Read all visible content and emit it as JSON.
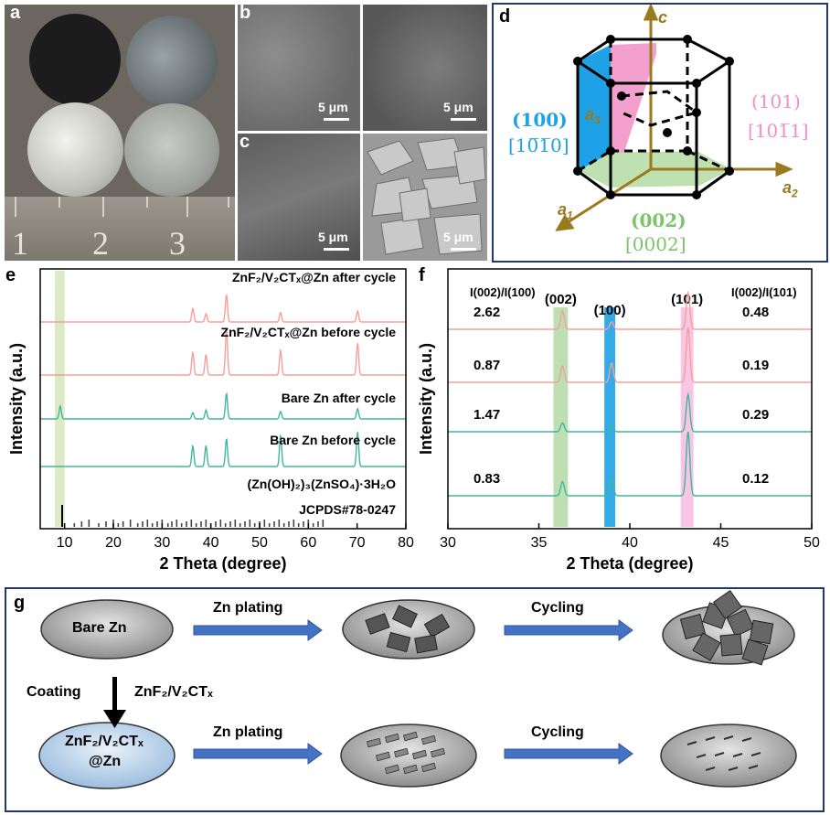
{
  "panels": {
    "a": "a",
    "b": "b",
    "c": "c",
    "d": "d",
    "e": "e",
    "f": "f",
    "g": "g"
  },
  "panel_a": {
    "ruler_numbers": [
      "1",
      "2",
      "3"
    ],
    "colors": {
      "dark_disc": "#1c1c1c",
      "grey_disc": "#6b7276",
      "silver_disc": "#c9c9c4",
      "frosted_disc": "#a7aaa5",
      "ruler": "#8a857d"
    }
  },
  "panel_bc": {
    "scale_labels": [
      "5 μm",
      "5 μm",
      "5 μm",
      "5 μm"
    ]
  },
  "panel_d": {
    "axis_c": "c",
    "axis_a1": "a",
    "axis_a1_sub": "1",
    "axis_a2": "a",
    "axis_a2_sub": "2",
    "axis_a3": "a",
    "axis_a3_sub": "3",
    "plane_100": "(100)",
    "dir_100": "[10̅1̅0]",
    "plane_101": "(101)",
    "dir_101": "[101̅1]",
    "plane_002": "(002)",
    "dir_002": "[0002]",
    "colors": {
      "c100": "#1ea1e6",
      "c101": "#f28fc7",
      "c002": "#7cc36a",
      "axis": "#9a7a1e"
    }
  },
  "chart_data": [
    {
      "panel": "e",
      "type": "line",
      "xlabel": "2 Theta (degree)",
      "ylabel": "Intensity (a.u.)",
      "xlim": [
        5,
        80
      ],
      "xticks": [
        10,
        20,
        30,
        40,
        50,
        60,
        70,
        80
      ],
      "highlight_band": [
        8,
        10
      ],
      "series": [
        {
          "name": "ZnF₂/V₂CTₓ@Zn after cycle",
          "color": "#f4a09a",
          "peaks": [
            [
              36.3,
              0.5
            ],
            [
              39.0,
              0.3
            ],
            [
              43.2,
              1.0
            ],
            [
              54.3,
              0.35
            ],
            [
              70.1,
              0.4
            ]
          ]
        },
        {
          "name": "ZnF₂/V₂CTₓ@Zn before cycle",
          "color": "#f4a09a",
          "peaks": [
            [
              36.3,
              0.5
            ],
            [
              39.0,
              0.45
            ],
            [
              43.2,
              1.0
            ],
            [
              54.3,
              0.55
            ],
            [
              70.1,
              0.7
            ]
          ]
        },
        {
          "name": "Bare Zn after cycle",
          "color": "#3fb89a",
          "peaks": [
            [
              9.1,
              0.5
            ],
            [
              36.3,
              0.25
            ],
            [
              39.0,
              0.35
            ],
            [
              43.2,
              1.0
            ],
            [
              54.3,
              0.3
            ],
            [
              70.1,
              0.4
            ]
          ]
        },
        {
          "name": "Bare Zn before cycle",
          "color": "#3fb89a",
          "peaks": [
            [
              36.3,
              0.6
            ],
            [
              39.0,
              0.6
            ],
            [
              43.2,
              0.8
            ],
            [
              54.3,
              0.9
            ],
            [
              70.1,
              1.0
            ]
          ]
        }
      ],
      "reference": {
        "label": "(Zn(OH)₂)₃(ZnSO₄)·3H₂O",
        "card": "JCPDS#78-0247",
        "main_peak": 9.5
      }
    },
    {
      "panel": "f",
      "type": "line",
      "xlabel": "2 Theta (degree)",
      "ylabel": "Intensity (a.u.)",
      "xlim": [
        30,
        50
      ],
      "xticks": [
        30,
        35,
        40,
        45,
        50
      ],
      "ratio_header_left": "I(002)/I(100)",
      "ratio_header_right": "I(002)/I(101)",
      "bands": [
        {
          "label": "(002)",
          "range": [
            35.8,
            36.6
          ],
          "color": "#b7dca9"
        },
        {
          "label": "(100)",
          "range": [
            38.6,
            39.2
          ],
          "color": "#1ea1e6"
        },
        {
          "label": "(101)",
          "range": [
            42.8,
            43.5
          ],
          "color": "#f7bfe0"
        }
      ],
      "series": [
        {
          "color": "#f4a09a",
          "ratio_left": "2.62",
          "ratio_right": "0.48",
          "peaks": [
            [
              36.3,
              0.5
            ],
            [
              39.0,
              0.2
            ],
            [
              43.2,
              1.0
            ]
          ]
        },
        {
          "color": "#f4a09a",
          "ratio_left": "0.87",
          "ratio_right": "0.19",
          "peaks": [
            [
              36.3,
              0.3
            ],
            [
              39.0,
              0.35
            ],
            [
              43.2,
              1.0
            ]
          ]
        },
        {
          "color": "#3fb89a",
          "ratio_left": "1.47",
          "ratio_right": "0.29",
          "peaks": [
            [
              36.3,
              0.2
            ],
            [
              39.0,
              0.15
            ],
            [
              43.2,
              0.85
            ]
          ]
        },
        {
          "color": "#3fb89a",
          "ratio_left": "0.83",
          "ratio_right": "0.12",
          "peaks": [
            [
              36.3,
              0.22
            ],
            [
              39.0,
              0.25
            ],
            [
              43.2,
              1.0
            ]
          ]
        }
      ]
    }
  ],
  "panel_g": {
    "bare_label": "Bare Zn",
    "coated_label_1": "ZnF₂/V₂CTₓ",
    "coated_label_2": "@Zn",
    "coating_label": "Coating",
    "coating_material": "ZnF₂/V₂CTₓ",
    "plating_top": "Zn plating",
    "cycling_top": "Cycling",
    "plating_bottom": "Zn plating",
    "cycling_bottom": "Cycling",
    "colors": {
      "arrow": "#4472c4",
      "bare_disc": "#9a9a9a",
      "coated_disc": "#bcd4ee"
    }
  }
}
